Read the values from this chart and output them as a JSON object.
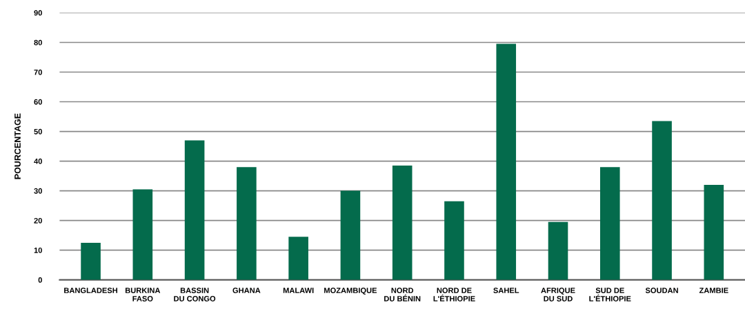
{
  "chart_data": {
    "type": "bar",
    "ylabel": "POURCENTAGE",
    "categories": [
      "BANGLADESH",
      "BURKINA\nFASO",
      "BASSIN\nDU CONGO",
      "GHANA",
      "MALAWI",
      "MOZAMBIQUE",
      "NORD\nDU BÉNIN",
      "NORD DE\nL'ÉTHIOPIE",
      "SAHEL",
      "AFRIQUE\nDU SUD",
      "SUD DE\nL'ÉTHIOPIE",
      "SOUDAN",
      "ZAMBIE"
    ],
    "values": [
      12.5,
      30.5,
      47,
      38,
      14.5,
      30,
      38.5,
      26.5,
      79.5,
      19.5,
      38,
      53.5,
      32
    ],
    "color": "#046b4c",
    "ylim": [
      0,
      90
    ],
    "yticks": [
      0,
      10,
      20,
      30,
      40,
      50,
      60,
      70,
      80,
      90
    ],
    "grid": "y",
    "legend": false
  }
}
